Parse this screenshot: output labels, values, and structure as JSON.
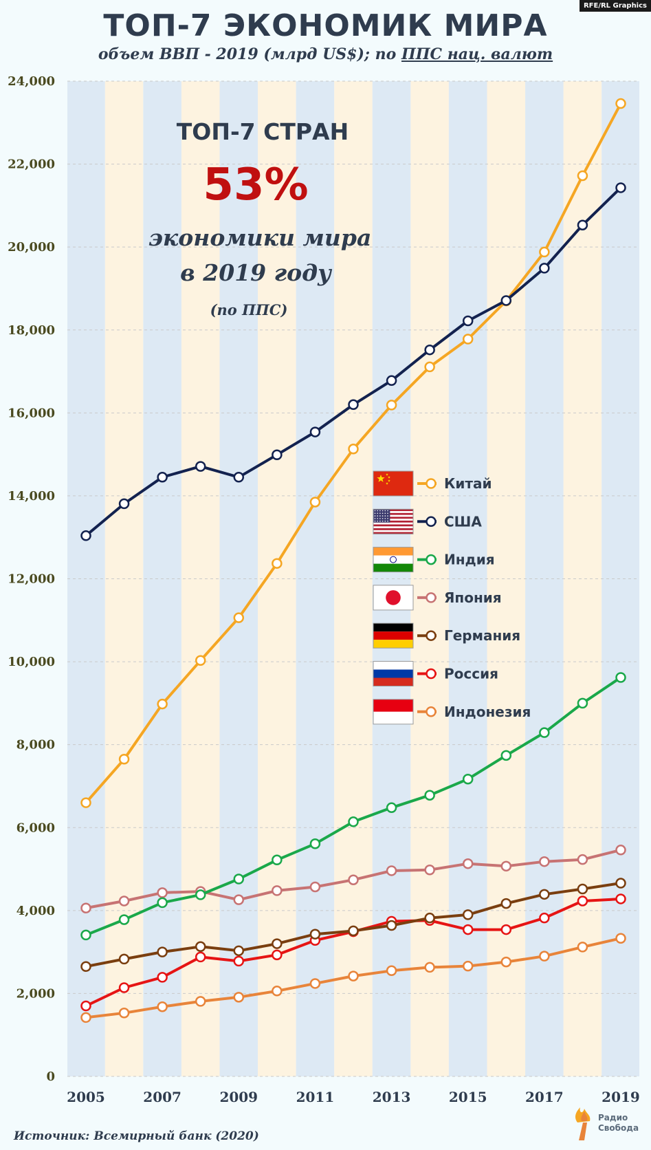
{
  "badge": "RFE/RL Graphics",
  "title": "ТОП-7 ЭКОНОМИК МИРА",
  "subtitle": {
    "part1": "объем ВВП - 2019 (млрд US$); по ",
    "part2": "ППС нац. валют"
  },
  "callout": {
    "line1": "ТОП-7 СТРАН",
    "percent": "53%",
    "line2": "экономики мира",
    "line3": "в 2019 году",
    "line4": "(по ППС)"
  },
  "source": "Источник: Всемирный банк (2020)",
  "logo": {
    "line1": "Радио",
    "line2": "Свобода"
  },
  "colors": {
    "band_blue": "#dde9f4",
    "band_cream": "#fdf3e0",
    "text": "#2f3c4e",
    "accent_red": "#c01010"
  },
  "chart_data": {
    "type": "line",
    "x": [
      2005,
      2006,
      2007,
      2008,
      2009,
      2010,
      2011,
      2012,
      2013,
      2014,
      2015,
      2016,
      2017,
      2018,
      2019
    ],
    "x_tick_labels": [
      "2005",
      "2007",
      "2009",
      "2011",
      "2013",
      "2015",
      "2017",
      "2019"
    ],
    "y_tick_labels": [
      "0",
      "2,000",
      "4,000",
      "6,000",
      "8,000",
      "10,000",
      "12,000",
      "14,000",
      "16,000",
      "18,000",
      "20,000",
      "22,000",
      "24,000"
    ],
    "ylim": [
      0,
      24000
    ],
    "grid": true,
    "legend_position": "center-right",
    "series": [
      {
        "name": "Китай",
        "color": "#f5a623",
        "flag": "china",
        "values": [
          6600,
          7650,
          8980,
          10030,
          11060,
          12370,
          13850,
          15130,
          16190,
          17110,
          17780,
          18700,
          19880,
          21720,
          23460
        ]
      },
      {
        "name": "США",
        "color": "#13224f",
        "flag": "usa",
        "values": [
          13040,
          13810,
          14450,
          14710,
          14450,
          14990,
          15540,
          16200,
          16780,
          17520,
          18220,
          18710,
          19490,
          20530,
          21430
        ]
      },
      {
        "name": "Индия",
        "color": "#1aa84a",
        "flag": "india",
        "values": [
          3410,
          3780,
          4190,
          4380,
          4760,
          5220,
          5610,
          6140,
          6480,
          6780,
          7170,
          7740,
          8290,
          9000,
          9620
        ]
      },
      {
        "name": "Япония",
        "color": "#c77373",
        "flag": "japan",
        "values": [
          4060,
          4230,
          4430,
          4460,
          4260,
          4480,
          4570,
          4740,
          4960,
          4980,
          5130,
          5070,
          5180,
          5230,
          5460
        ]
      },
      {
        "name": "Германия",
        "color": "#7a3e0f",
        "flag": "germany",
        "values": [
          2650,
          2830,
          3000,
          3130,
          3030,
          3200,
          3430,
          3510,
          3640,
          3820,
          3900,
          4170,
          4390,
          4520,
          4660
        ]
      },
      {
        "name": "Россия",
        "color": "#e61414",
        "flag": "russia",
        "values": [
          1700,
          2140,
          2390,
          2880,
          2780,
          2930,
          3280,
          3490,
          3740,
          3760,
          3540,
          3540,
          3820,
          4230,
          4280
        ]
      },
      {
        "name": "Индонезия",
        "color": "#e8843a",
        "flag": "indonesia",
        "values": [
          1420,
          1530,
          1680,
          1810,
          1910,
          2060,
          2240,
          2420,
          2550,
          2630,
          2660,
          2760,
          2900,
          3120,
          3330
        ]
      }
    ]
  }
}
